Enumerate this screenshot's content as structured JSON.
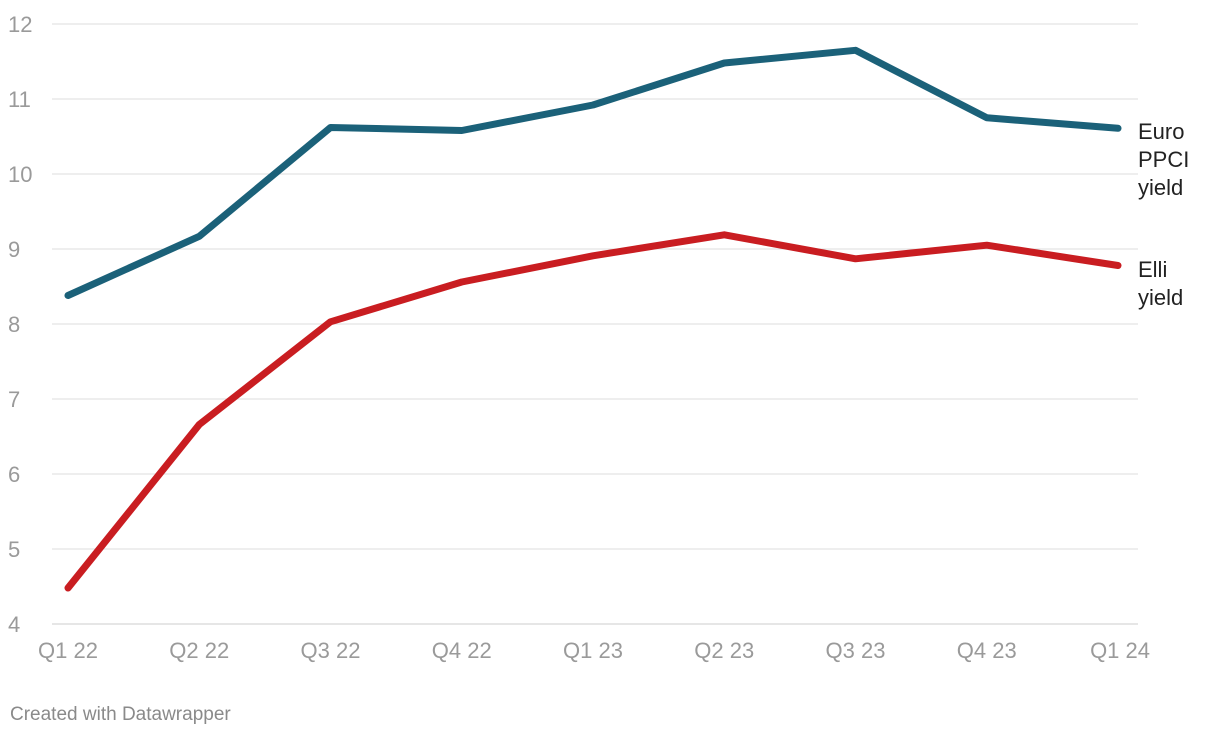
{
  "chart_data": {
    "type": "line",
    "categories": [
      "Q1 22",
      "Q2 22",
      "Q3 22",
      "Q4 22",
      "Q1 23",
      "Q2 23",
      "Q3 23",
      "Q4 23",
      "Q1 24"
    ],
    "series": [
      {
        "name": "Euro PPCI yield",
        "name_lines": [
          "Euro",
          "PPCI",
          "yield"
        ],
        "color": "#1b6179",
        "values": [
          8.38,
          9.17,
          10.62,
          10.58,
          10.92,
          11.48,
          11.65,
          10.75,
          10.61
        ]
      },
      {
        "name": "Elli yield",
        "name_lines": [
          "Elli",
          "yield"
        ],
        "color": "#c91d21",
        "values": [
          4.48,
          6.66,
          8.03,
          8.56,
          8.91,
          9.19,
          8.87,
          9.05,
          8.78
        ]
      }
    ],
    "ylim": [
      4,
      12
    ],
    "yticks": [
      4,
      5,
      6,
      7,
      8,
      9,
      10,
      11,
      12
    ],
    "grid": true,
    "legend": "inline-right",
    "title": "",
    "xlabel": "",
    "ylabel": ""
  },
  "footer": {
    "credit": "Created with Datawrapper"
  }
}
